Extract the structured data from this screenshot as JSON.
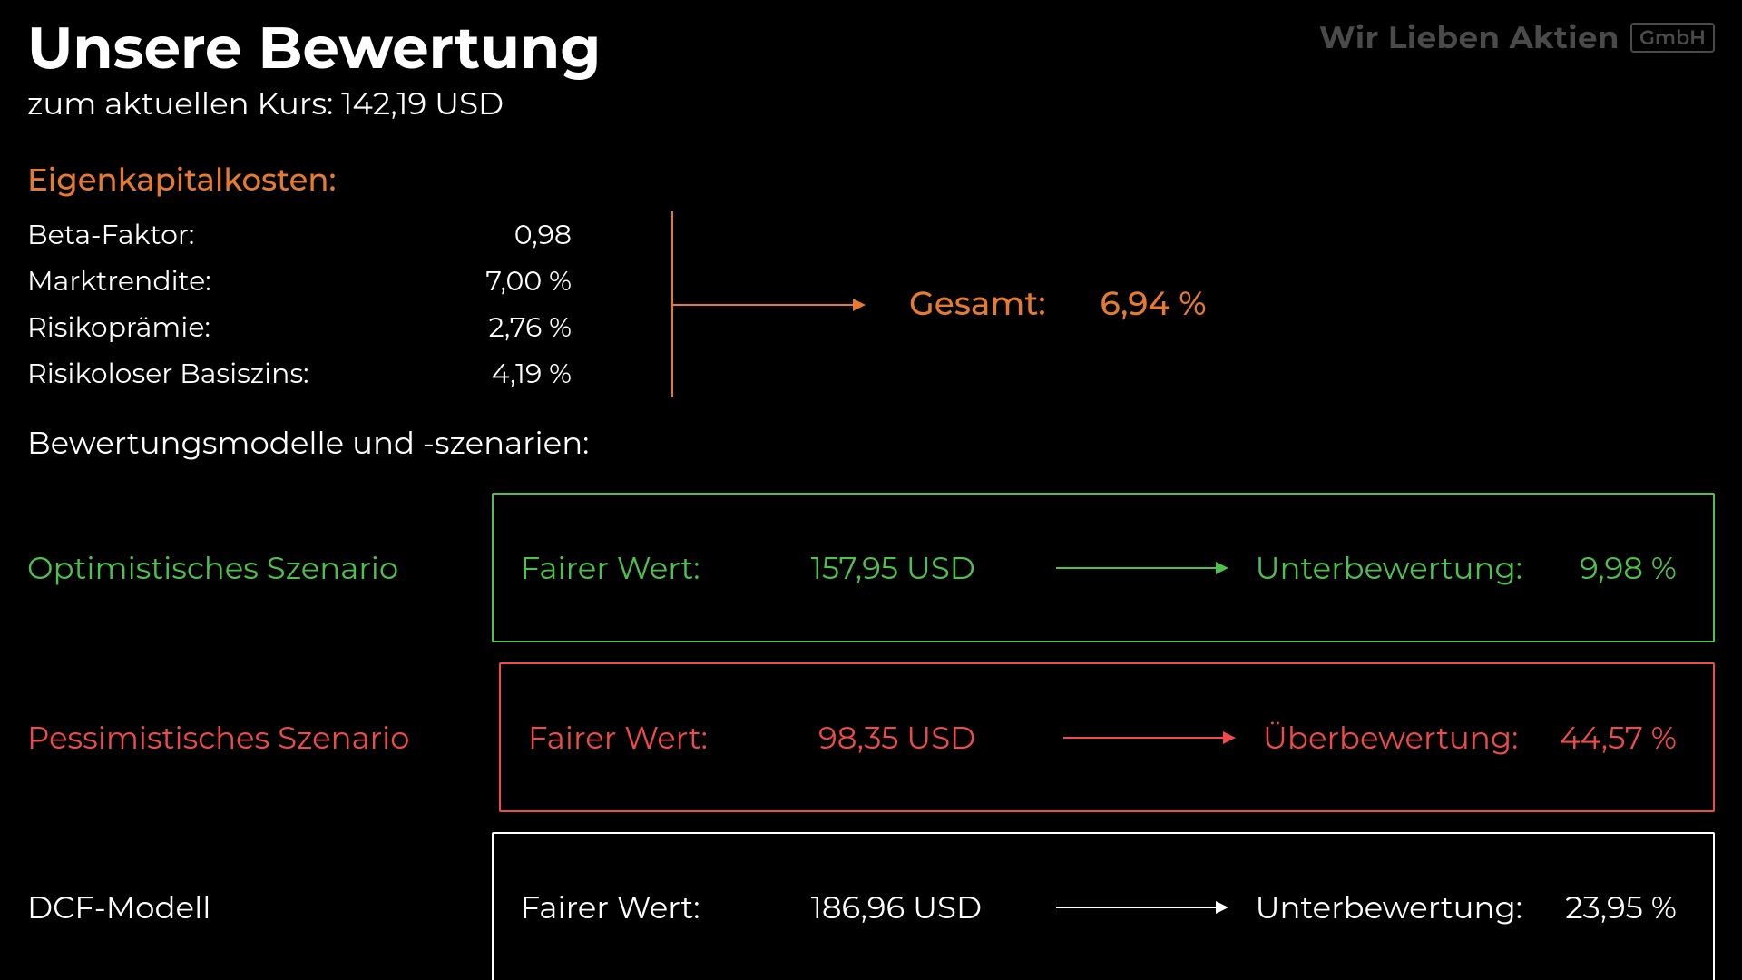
{
  "branding": {
    "text": "Wir Lieben Aktien",
    "badge": "GmbH",
    "color": "#4a4a4a"
  },
  "title": "Unsere Bewertung",
  "subtitle": "zum aktuellen Kurs: 142,19 USD",
  "colors": {
    "background": "#000000",
    "white": "#ffffff",
    "orange": "#e67a2e",
    "green": "#4dc24d",
    "red": "#f04a4a",
    "grey": "#4a4a4a"
  },
  "cost_of_equity": {
    "heading": "Eigenkapitalkosten:",
    "rows": [
      {
        "label": "Beta-Faktor:",
        "value": "0,98"
      },
      {
        "label": "Marktrendite:",
        "value": "7,00 %"
      },
      {
        "label": "Risikoprämie:",
        "value": "2,76 %"
      },
      {
        "label": "Risikoloser Basiszins:",
        "value": "4,19 %"
      }
    ],
    "result_label": "Gesamt:",
    "result_value": "6,94 %"
  },
  "models": {
    "heading": "Bewertungsmodelle und -szenarien:",
    "scenarios": [
      {
        "name": "Optimistisches Szenario",
        "fair_value_label": "Fairer Wert:",
        "fair_value": "157,95 USD",
        "valuation_label": "Unterbewertung:",
        "valuation_value": "9,98 %",
        "color": "#4dc24d"
      },
      {
        "name": "Pessimistisches Szenario",
        "fair_value_label": "Fairer Wert:",
        "fair_value": "98,35 USD",
        "valuation_label": "Überbewertung:",
        "valuation_value": "44,57 %",
        "color": "#f04a4a"
      },
      {
        "name": "DCF-Modell",
        "fair_value_label": "Fairer Wert:",
        "fair_value": "186,96 USD",
        "valuation_label": "Unterbewertung:",
        "valuation_value": "23,95 %",
        "color": "#ffffff"
      }
    ]
  }
}
